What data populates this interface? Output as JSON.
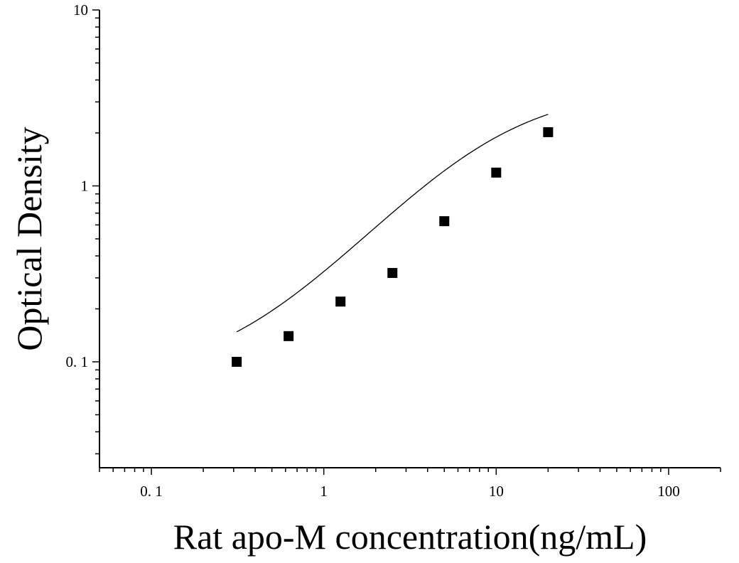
{
  "chart_data": {
    "type": "scatter",
    "xlabel": "Rat apo-M concentration(ng/mL)",
    "ylabel": "Optical Density",
    "xscale": "log",
    "yscale": "log",
    "xlim": [
      0.05,
      200
    ],
    "ylim": [
      0.025,
      10
    ],
    "x_tick_labels": [
      "0. 1",
      "1",
      "10",
      "100"
    ],
    "y_tick_labels": [
      "0. 1",
      "1",
      "10"
    ],
    "grid": false,
    "legend": "none",
    "series": [
      {
        "marker": "square",
        "x": [
          0.3125,
          0.625,
          1.25,
          2.5,
          5,
          10,
          20
        ],
        "y": [
          0.1,
          0.14,
          0.22,
          0.32,
          0.63,
          1.19,
          2.02
        ]
      }
    ],
    "fit_curve": {
      "type": "4PL",
      "a": 0.08,
      "d": 3.6,
      "c": 9.5,
      "b": 1.15
    },
    "colors": {
      "marker": "#000000",
      "line": "#000000",
      "axis": "#000000"
    }
  }
}
